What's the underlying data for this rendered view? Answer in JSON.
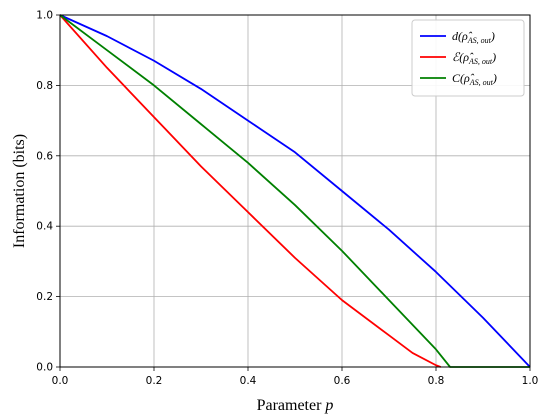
{
  "chart_data": {
    "type": "line",
    "xlabel": "Parameter",
    "xlabel_var": "p",
    "ylabel": "Information (bits)",
    "xlim": [
      0.0,
      1.0
    ],
    "ylim": [
      0.0,
      1.0
    ],
    "xticks": [
      "0.0",
      "0.2",
      "0.4",
      "0.6",
      "0.8",
      "1.0"
    ],
    "yticks": [
      "0.0",
      "0.2",
      "0.4",
      "0.6",
      "0.8",
      "1.0"
    ],
    "grid": true,
    "legend_position": "top-right",
    "series": [
      {
        "name": "d(ρ̂AS,out)",
        "name_main": "d(ρ̂",
        "name_sub": "AS, out",
        "name_close": ")",
        "color": "#0000ff",
        "x": [
          0.0,
          0.1,
          0.2,
          0.3,
          0.4,
          0.5,
          0.6,
          0.7,
          0.8,
          0.9,
          1.0
        ],
        "y": [
          1.0,
          0.94,
          0.87,
          0.79,
          0.7,
          0.61,
          0.5,
          0.39,
          0.27,
          0.14,
          0.0
        ]
      },
      {
        "name": "ℰ(ρ̂AS,out)",
        "name_main": "ℰ(ρ̂",
        "name_sub": "AS, out",
        "name_close": ")",
        "color": "#ff0000",
        "x": [
          0.0,
          0.1,
          0.2,
          0.3,
          0.4,
          0.5,
          0.6,
          0.7,
          0.75,
          0.8,
          0.81
        ],
        "y": [
          1.0,
          0.85,
          0.71,
          0.57,
          0.44,
          0.31,
          0.19,
          0.09,
          0.04,
          0.005,
          0.0
        ]
      },
      {
        "name": "C(ρ̂AS,out)",
        "name_main": "C(ρ̂",
        "name_sub": "AS, out",
        "name_close": ")",
        "color": "#008000",
        "x": [
          0.0,
          0.1,
          0.2,
          0.3,
          0.4,
          0.5,
          0.6,
          0.7,
          0.8,
          0.83,
          0.9,
          1.0
        ],
        "y": [
          1.0,
          0.9,
          0.8,
          0.69,
          0.58,
          0.46,
          0.33,
          0.19,
          0.05,
          0.0,
          0.0,
          0.0
        ]
      }
    ]
  }
}
